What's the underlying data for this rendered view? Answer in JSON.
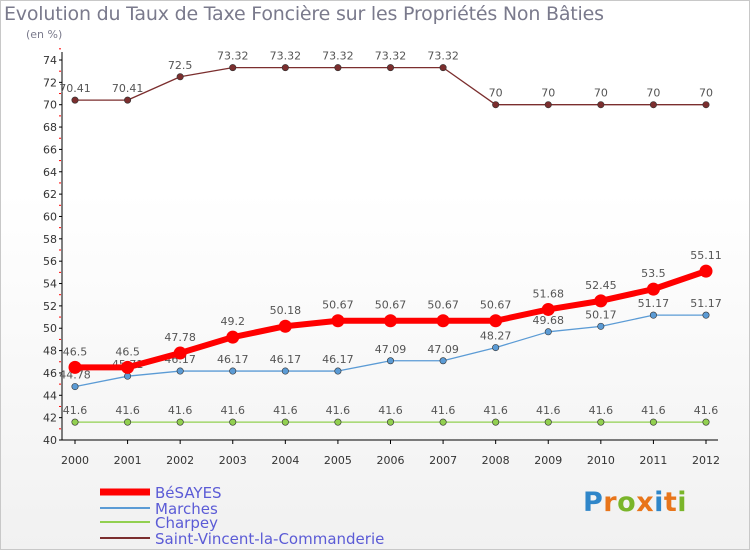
{
  "chart_data": {
    "type": "line",
    "title": "Evolution du Taux de Taxe Foncière sur les Propriétés Non Bâties",
    "subtitle": "(en %)",
    "x": [
      "2000",
      "2001",
      "2002",
      "2003",
      "2004",
      "2005",
      "2006",
      "2007",
      "2008",
      "2009",
      "2010",
      "2011",
      "2012"
    ],
    "ylim": [
      40,
      74
    ],
    "yticks": [
      40,
      42,
      44,
      46,
      48,
      50,
      52,
      54,
      56,
      58,
      60,
      62,
      64,
      66,
      68,
      70,
      72,
      74
    ],
    "series": [
      {
        "name": "BéSAYES",
        "color": "#ff0000",
        "values": [
          46.5,
          46.5,
          47.78,
          49.2,
          50.18,
          50.67,
          50.67,
          50.67,
          50.67,
          51.68,
          52.45,
          53.5,
          55.11
        ],
        "labels": [
          "46.5",
          "46.5",
          "47.78",
          "49.2",
          "50.18",
          "50.67",
          "50.67",
          "50.67",
          "50.67",
          "51.68",
          "52.45",
          "53.5",
          "55.11"
        ]
      },
      {
        "name": "Marches",
        "color": "#5b9bd5",
        "values": [
          44.78,
          45.71,
          46.17,
          46.17,
          46.17,
          46.17,
          47.09,
          47.09,
          48.27,
          49.68,
          50.17,
          51.17,
          51.17
        ],
        "labels": [
          "44.78",
          "45.71",
          "46.17",
          "46.17",
          "46.17",
          "46.17",
          "47.09",
          "47.09",
          "48.27",
          "49.68",
          "50.17",
          "51.17",
          "51.17"
        ]
      },
      {
        "name": "Charpey",
        "color": "#92d050",
        "values": [
          41.6,
          41.6,
          41.6,
          41.6,
          41.6,
          41.6,
          41.6,
          41.6,
          41.6,
          41.6,
          41.6,
          41.6,
          41.6
        ],
        "labels": [
          "41.6",
          "41.6",
          "41.6",
          "41.6",
          "41.6",
          "41.6",
          "41.6",
          "41.6",
          "41.6",
          "41.6",
          "41.6",
          "41.6",
          "41.6"
        ]
      },
      {
        "name": "Saint-Vincent-la-Commanderie",
        "color": "#7b2e2e",
        "values": [
          70.41,
          70.41,
          72.5,
          73.32,
          73.32,
          73.32,
          73.32,
          73.32,
          70,
          70,
          70,
          70,
          70
        ],
        "labels": [
          "70.41",
          "70.41",
          "72.5",
          "73.32",
          "73.32",
          "73.32",
          "73.32",
          "73.32",
          "70",
          "70",
          "70",
          "70",
          "70"
        ]
      }
    ],
    "legend_position": "bottom-left",
    "grid": false
  },
  "logo": {
    "p": "P",
    "r": "r",
    "o": "o",
    "x": "x",
    "i1": "i",
    "t": "t",
    "i2": "i"
  }
}
